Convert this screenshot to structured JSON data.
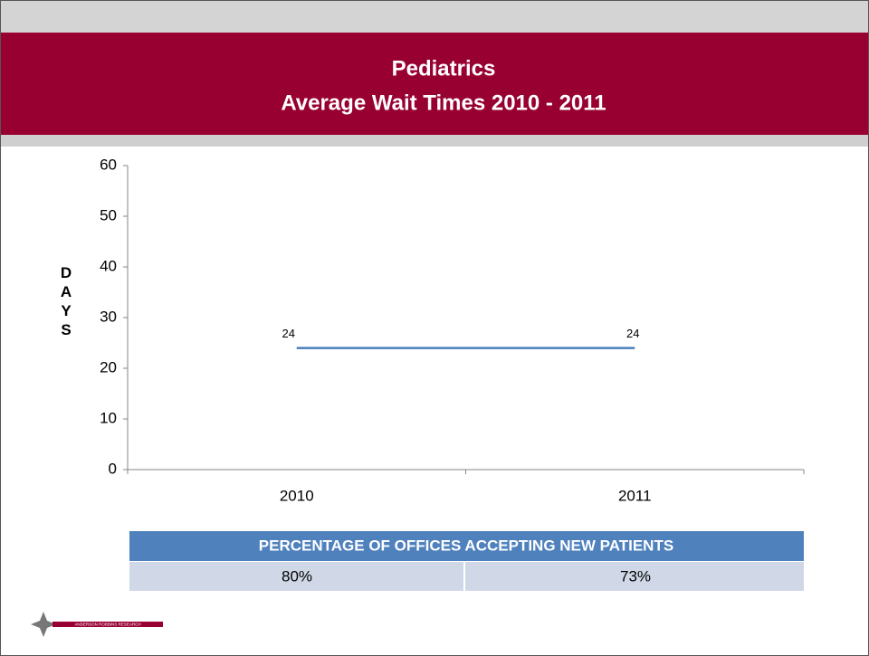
{
  "chart_data": {
    "type": "line",
    "title": [
      "Pediatrics",
      "Average Wait Times 2010 - 2011"
    ],
    "y_label": "DAYS",
    "categories": [
      "2010",
      "2011"
    ],
    "series": [
      {
        "name": "Average Wait Time",
        "color": "#4a7ebb",
        "values": [
          24,
          24
        ]
      }
    ],
    "ylim": [
      0,
      60
    ],
    "yticks": [
      0,
      10,
      20,
      30,
      40,
      50,
      60
    ],
    "table": {
      "header": "PERCENTAGE OF OFFICES ACCEPTING NEW  PATIENTS",
      "cells": [
        "80%",
        "73%"
      ]
    },
    "logo_text": "ANDERSON ROBBINS RESEARCH"
  }
}
